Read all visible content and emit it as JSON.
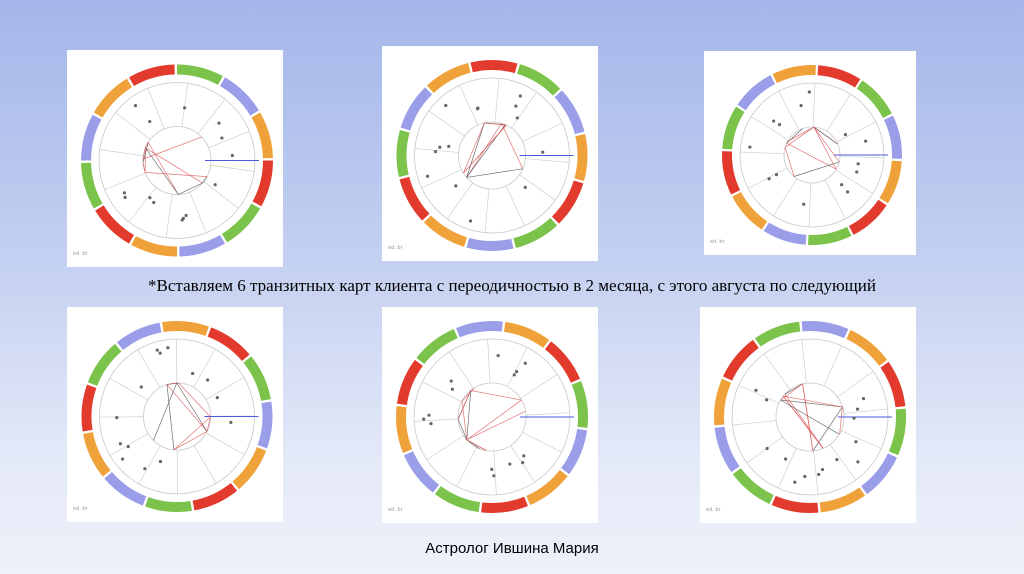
{
  "slide": {
    "caption": "*Вставляем 6 транзитных карт клиента с переодичностью в 2 месяца, с этого августа по следующий",
    "author": "Астролог Ившина Мария"
  },
  "palette": {
    "ring": [
      "#e23b2e",
      "#7bc34a",
      "#9a9ee8",
      "#f0a23a",
      "#e23b2e",
      "#7bc34a",
      "#9a9ee8",
      "#f0a23a",
      "#e23b2e",
      "#7bc34a",
      "#9a9ee8",
      "#f0a23a"
    ],
    "red_aspect": "#e05a5a",
    "grey_aspect": "#555555",
    "axis": "#4a5adf"
  },
  "charts": [
    {
      "id": "chart-1",
      "corner_label": "ed. br"
    },
    {
      "id": "chart-2",
      "corner_label": "ed. br"
    },
    {
      "id": "chart-3",
      "corner_label": "ed. br"
    },
    {
      "id": "chart-4",
      "corner_label": "ed. br"
    },
    {
      "id": "chart-5",
      "corner_label": "ed. br"
    },
    {
      "id": "chart-6",
      "corner_label": "ed. br"
    }
  ]
}
